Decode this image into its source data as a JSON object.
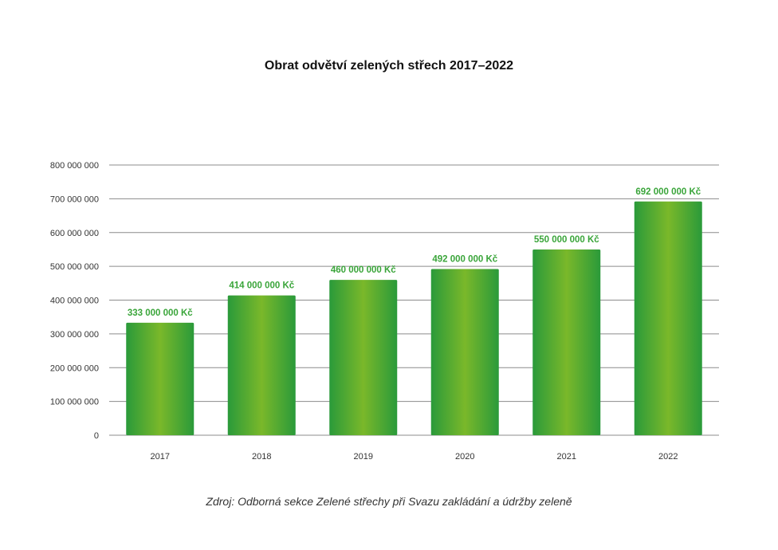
{
  "source": "Zdroj: Odborná sekce Zelené střechy při Svazu zakládání a údržby zeleně",
  "colors": {
    "bar_edge": "#2a9a3a",
    "bar_center": "#7ab82a",
    "label": "#3aa53a",
    "grid": "#8c8c8c"
  },
  "chart_data": {
    "type": "bar",
    "title": "Obrat odvětví zelených střech 2017–2022",
    "xlabel": "",
    "ylabel": "",
    "categories": [
      "2017",
      "2018",
      "2019",
      "2020",
      "2021",
      "2022"
    ],
    "values": [
      333000000,
      414000000,
      460000000,
      492000000,
      550000000,
      692000000
    ],
    "data_labels": [
      "333 000 000 Kč",
      "414 000 000 Kč",
      "460 000 000 Kč",
      "492 000 000 Kč",
      "550 000 000 Kč",
      "692 000 000 Kč"
    ],
    "ylim": [
      0,
      800000000
    ],
    "yticks": [
      0,
      100000000,
      200000000,
      300000000,
      400000000,
      500000000,
      600000000,
      700000000,
      800000000
    ],
    "ytick_labels": [
      "0",
      "100 000 000",
      "200 000 000",
      "300 000 000",
      "400 000 000",
      "500 000 000",
      "600 000 000",
      "700 000 000",
      "800 000 000"
    ],
    "grid": true,
    "legend": "none"
  }
}
